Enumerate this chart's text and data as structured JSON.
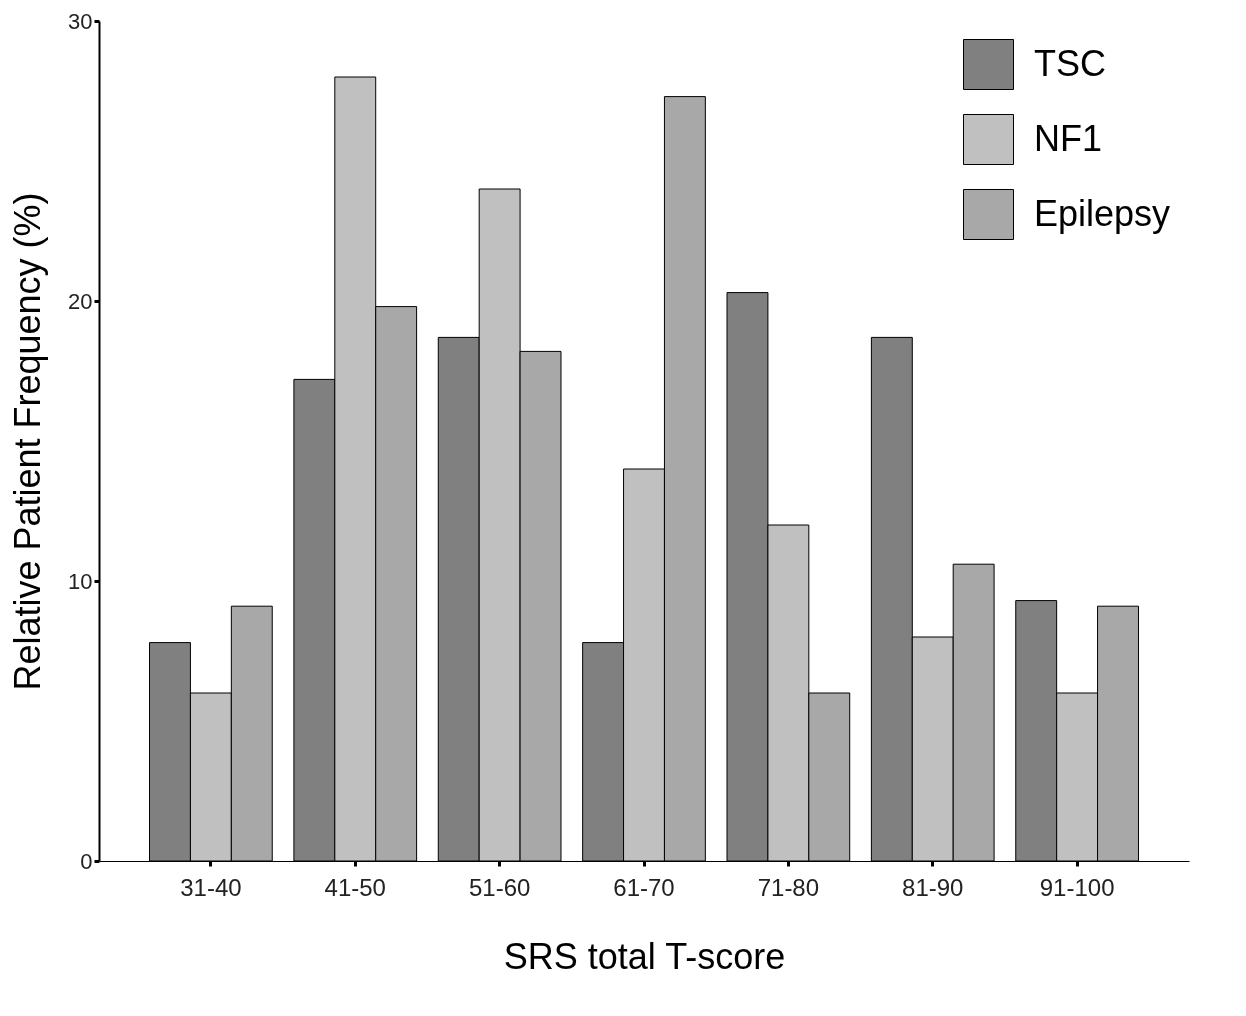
{
  "chart_data": {
    "type": "bar",
    "xlabel": "SRS total T-score",
    "ylabel": "Relative Patient Frequency (%)",
    "categories": [
      "31-40",
      "41-50",
      "51-60",
      "61-70",
      "71-80",
      "81-90",
      "91-100"
    ],
    "series": [
      {
        "name": "TSC",
        "color": "#808080",
        "values": [
          7.8,
          17.2,
          18.7,
          7.8,
          20.3,
          18.7,
          9.3
        ]
      },
      {
        "name": "NF1",
        "color": "#c0c0c0",
        "values": [
          6,
          28,
          24,
          14,
          12,
          8,
          6
        ]
      },
      {
        "name": "Epilepsy",
        "color": "#a8a8a8",
        "values": [
          9.1,
          19.8,
          18.2,
          27.3,
          6,
          10.6,
          9.1
        ]
      }
    ],
    "ylim": [
      0,
      30
    ],
    "yticks": [
      0,
      10,
      20,
      30
    ],
    "grid": false,
    "legend": "top right"
  }
}
